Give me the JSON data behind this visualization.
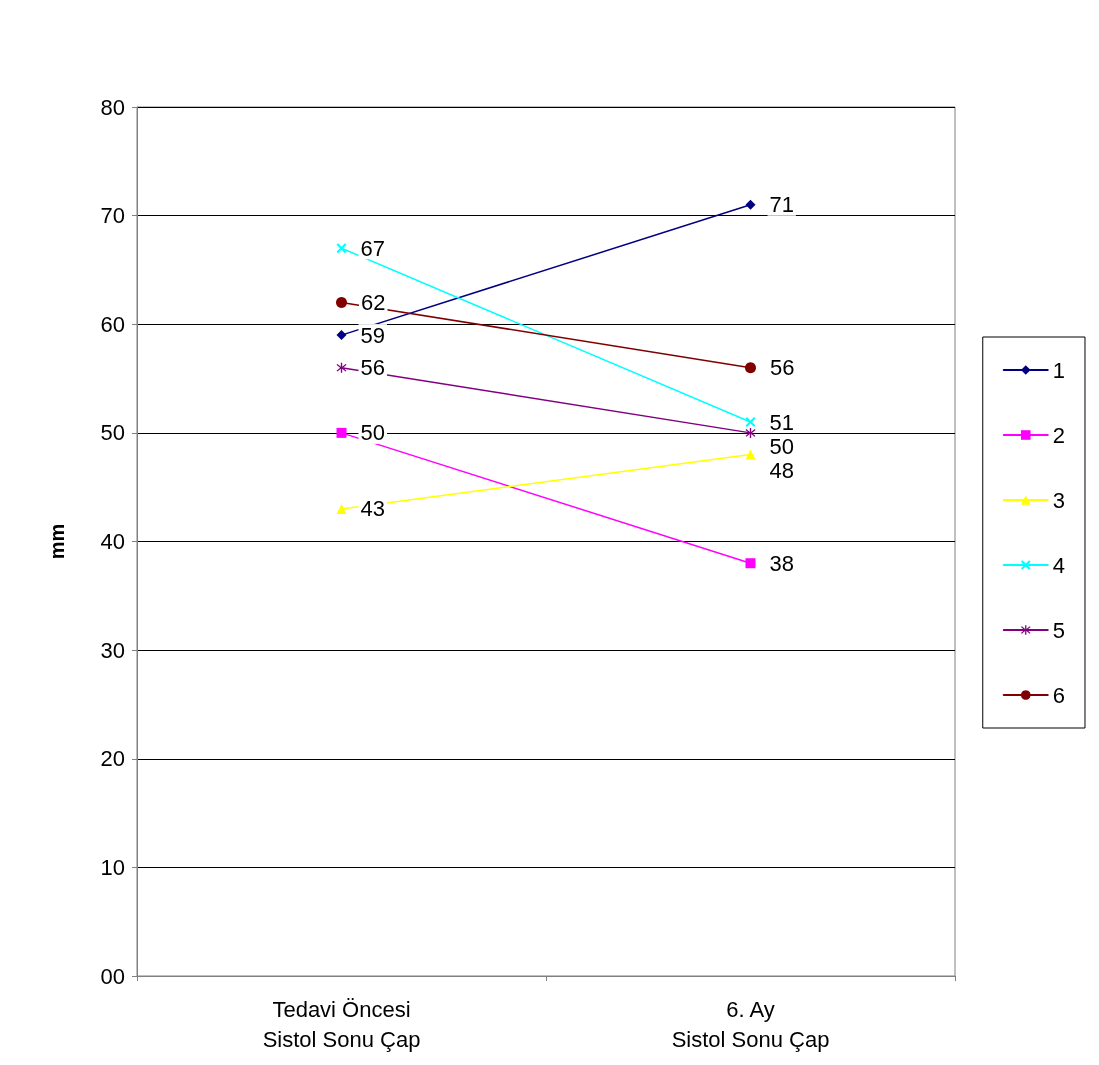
{
  "chart_data": {
    "type": "line",
    "ylabel": "mm",
    "categories": [
      "Tedavi Öncesi\nSistol Sonu Çap",
      "6. Ay\nSistol Sonu Çap"
    ],
    "series": [
      {
        "name": "1",
        "color": "#000080",
        "marker": "diamond",
        "values": [
          59,
          71
        ]
      },
      {
        "name": "2",
        "color": "#ff00ff",
        "marker": "square",
        "values": [
          50,
          38
        ]
      },
      {
        "name": "3",
        "color": "#ffff00",
        "marker": "triangle",
        "values": [
          43,
          48
        ]
      },
      {
        "name": "4",
        "color": "#00ffff",
        "marker": "cross",
        "values": [
          67,
          51
        ]
      },
      {
        "name": "5",
        "color": "#800080",
        "marker": "star",
        "values": [
          56,
          50
        ]
      },
      {
        "name": "6",
        "color": "#800000",
        "marker": "circle",
        "values": [
          62,
          56
        ]
      }
    ],
    "ylim": [
      0,
      80
    ],
    "yticks": [
      {
        "value": 0,
        "label": "00"
      },
      10,
      20,
      30,
      40,
      50,
      60,
      70,
      80
    ],
    "grid": "y",
    "legend": "right",
    "data_labels": true,
    "line_style": "solid"
  }
}
